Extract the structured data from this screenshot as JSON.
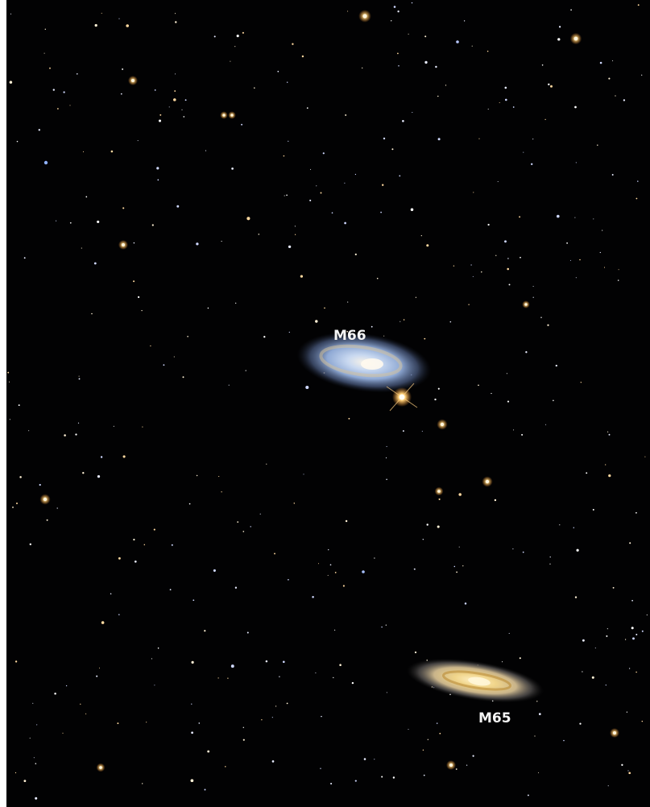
{
  "labels": {
    "m66": "M66",
    "m65": "M65"
  }
}
